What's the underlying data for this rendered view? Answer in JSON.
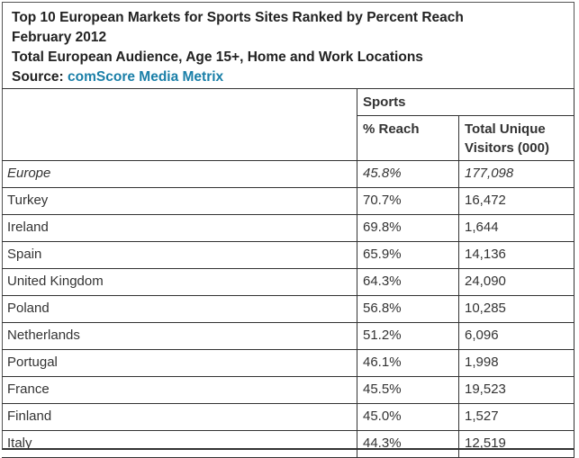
{
  "header": {
    "title": "Top 10 European Markets for Sports Sites Ranked by Percent Reach",
    "date": "February 2012",
    "audience": "Total European Audience, Age 15+, Home and Work Locations",
    "source_label": "Source:",
    "source_link": "comScore Media Metrix"
  },
  "table": {
    "group_header": "Sports",
    "columns": [
      "",
      "% Reach",
      "Total Unique Visitors (000)"
    ],
    "col2_line1": "Total Unique",
    "col2_line2": "Visitors (000)",
    "rows": [
      {
        "market": "Europe",
        "reach": "45.8%",
        "visitors": "177,098"
      },
      {
        "market": "Turkey",
        "reach": "70.7%",
        "visitors": "16,472"
      },
      {
        "market": "Ireland",
        "reach": "69.8%",
        "visitors": "1,644"
      },
      {
        "market": "Spain",
        "reach": "65.9%",
        "visitors": "14,136"
      },
      {
        "market": "United Kingdom",
        "reach": "64.3%",
        "visitors": "24,090"
      },
      {
        "market": "Poland",
        "reach": "56.8%",
        "visitors": "10,285"
      },
      {
        "market": "Netherlands",
        "reach": "51.2%",
        "visitors": "6,096"
      },
      {
        "market": "Portugal",
        "reach": "46.1%",
        "visitors": "1,998"
      },
      {
        "market": "France",
        "reach": "45.5%",
        "visitors": "19,523"
      },
      {
        "market": "Finland",
        "reach": "45.0%",
        "visitors": "1,527"
      },
      {
        "market": "Italy",
        "reach": "44.3%",
        "visitors": "12,519"
      }
    ]
  },
  "colors": {
    "link": "#1a7fa8",
    "border": "#333333",
    "text": "#333333"
  }
}
